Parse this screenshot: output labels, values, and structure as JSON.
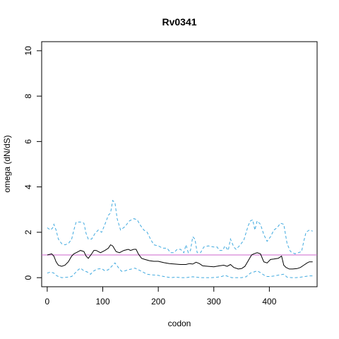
{
  "chart_data": {
    "type": "line",
    "title": "Rv0341",
    "xlabel": "codon",
    "ylabel": "omega (dN/dS)",
    "xlim": [
      -10,
      486
    ],
    "ylim": [
      -0.4,
      10.4
    ],
    "xticks": [
      0,
      100,
      200,
      300,
      400
    ],
    "yticks": [
      0,
      2,
      4,
      6,
      8,
      10
    ],
    "grid": false,
    "colors": {
      "omega": "#000000",
      "interval": "#3fa9df",
      "reference": "#cc66cc"
    },
    "reference_line": {
      "y": 1.0
    },
    "series": [
      {
        "role": "mean",
        "style": "solid",
        "x": [
          0,
          8,
          12,
          16,
          20,
          26,
          32,
          38,
          44,
          48,
          52,
          56,
          60,
          66,
          70,
          74,
          80,
          84,
          88,
          96,
          104,
          110,
          114,
          118,
          124,
          130,
          138,
          146,
          150,
          156,
          160,
          164,
          170,
          176,
          184,
          192,
          200,
          210,
          220,
          230,
          240,
          250,
          256,
          262,
          268,
          274,
          280,
          290,
          300,
          310,
          318,
          324,
          330,
          336,
          344,
          350,
          356,
          362,
          368,
          372,
          378,
          384,
          390,
          396,
          402,
          408,
          416,
          422,
          426,
          430,
          436,
          442,
          450,
          456,
          462,
          468,
          472,
          478
        ],
        "values": [
          1.0,
          1.05,
          0.95,
          0.7,
          0.55,
          0.5,
          0.55,
          0.7,
          0.95,
          1.05,
          1.1,
          1.15,
          1.2,
          1.15,
          0.95,
          0.85,
          1.05,
          1.2,
          1.2,
          1.1,
          1.2,
          1.3,
          1.45,
          1.4,
          1.15,
          1.1,
          1.2,
          1.25,
          1.2,
          1.25,
          1.25,
          1.05,
          0.85,
          0.8,
          0.75,
          0.72,
          0.72,
          0.66,
          0.62,
          0.6,
          0.58,
          0.58,
          0.62,
          0.6,
          0.68,
          0.62,
          0.52,
          0.5,
          0.48,
          0.52,
          0.55,
          0.5,
          0.58,
          0.45,
          0.38,
          0.4,
          0.5,
          0.75,
          1.0,
          1.05,
          1.1,
          1.05,
          0.7,
          0.65,
          0.8,
          0.82,
          0.85,
          0.95,
          0.55,
          0.45,
          0.38,
          0.38,
          0.4,
          0.45,
          0.55,
          0.65,
          0.7,
          0.7
        ]
      },
      {
        "role": "upper",
        "style": "dashed",
        "x": [
          0,
          6,
          10,
          12,
          16,
          20,
          26,
          32,
          38,
          44,
          48,
          52,
          60,
          66,
          70,
          74,
          80,
          86,
          92,
          98,
          104,
          110,
          114,
          118,
          122,
          126,
          132,
          140,
          148,
          156,
          162,
          168,
          174,
          180,
          186,
          192,
          200,
          208,
          216,
          222,
          228,
          234,
          240,
          246,
          250,
          254,
          258,
          262,
          266,
          270,
          276,
          282,
          290,
          300,
          306,
          310,
          316,
          320,
          326,
          330,
          336,
          340,
          346,
          354,
          362,
          366,
          370,
          374,
          378,
          384,
          390,
          396,
          402,
          408,
          414,
          420,
          426,
          432,
          438,
          446,
          452,
          458,
          462,
          466,
          472,
          478
        ],
        "values": [
          2.2,
          2.1,
          2.2,
          2.35,
          2.1,
          1.7,
          1.5,
          1.45,
          1.5,
          1.7,
          2.1,
          2.45,
          2.45,
          2.4,
          1.95,
          1.7,
          1.7,
          1.95,
          2.1,
          2.0,
          2.35,
          2.75,
          2.85,
          3.4,
          3.3,
          2.6,
          2.1,
          2.25,
          2.5,
          2.6,
          2.55,
          2.3,
          2.1,
          2.0,
          1.7,
          1.45,
          1.4,
          1.3,
          1.3,
          1.1,
          1.1,
          1.25,
          1.25,
          1.1,
          1.45,
          1.1,
          1.2,
          1.8,
          1.7,
          1.1,
          1.1,
          1.35,
          1.4,
          1.35,
          1.35,
          1.2,
          1.2,
          1.4,
          1.2,
          1.7,
          1.35,
          1.25,
          1.4,
          1.65,
          2.3,
          2.5,
          2.55,
          2.1,
          2.5,
          2.35,
          1.9,
          1.6,
          1.8,
          2.1,
          2.2,
          2.4,
          2.35,
          1.5,
          1.15,
          1.05,
          1.1,
          1.15,
          1.6,
          2.0,
          2.1,
          2.05
        ]
      },
      {
        "role": "lower",
        "style": "dashed",
        "x": [
          0,
          6,
          12,
          16,
          20,
          26,
          36,
          44,
          50,
          56,
          60,
          66,
          72,
          78,
          84,
          90,
          98,
          104,
          110,
          116,
          122,
          128,
          134,
          140,
          146,
          152,
          158,
          164,
          172,
          180,
          190,
          200,
          210,
          222,
          232,
          242,
          250,
          256,
          262,
          268,
          276,
          286,
          296,
          306,
          314,
          320,
          326,
          332,
          340,
          350,
          358,
          366,
          372,
          378,
          384,
          390,
          396,
          402,
          410,
          418,
          426,
          432,
          440,
          448,
          456,
          464,
          472,
          478
        ],
        "values": [
          0.2,
          0.25,
          0.2,
          0.1,
          0.05,
          0.0,
          0.02,
          0.05,
          0.2,
          0.35,
          0.42,
          0.3,
          0.25,
          0.15,
          0.3,
          0.38,
          0.4,
          0.3,
          0.35,
          0.5,
          0.65,
          0.45,
          0.28,
          0.3,
          0.35,
          0.38,
          0.42,
          0.35,
          0.25,
          0.15,
          0.12,
          0.1,
          0.05,
          0.0,
          0.02,
          0.0,
          0.0,
          0.02,
          0.04,
          0.02,
          0.0,
          0.0,
          0.0,
          0.02,
          0.05,
          0.1,
          0.05,
          0.0,
          0.0,
          0.0,
          0.04,
          0.2,
          0.25,
          0.3,
          0.22,
          0.12,
          0.05,
          0.05,
          0.08,
          0.12,
          0.15,
          0.02,
          0.0,
          0.0,
          0.02,
          0.05,
          0.08,
          0.08
        ]
      }
    ]
  }
}
